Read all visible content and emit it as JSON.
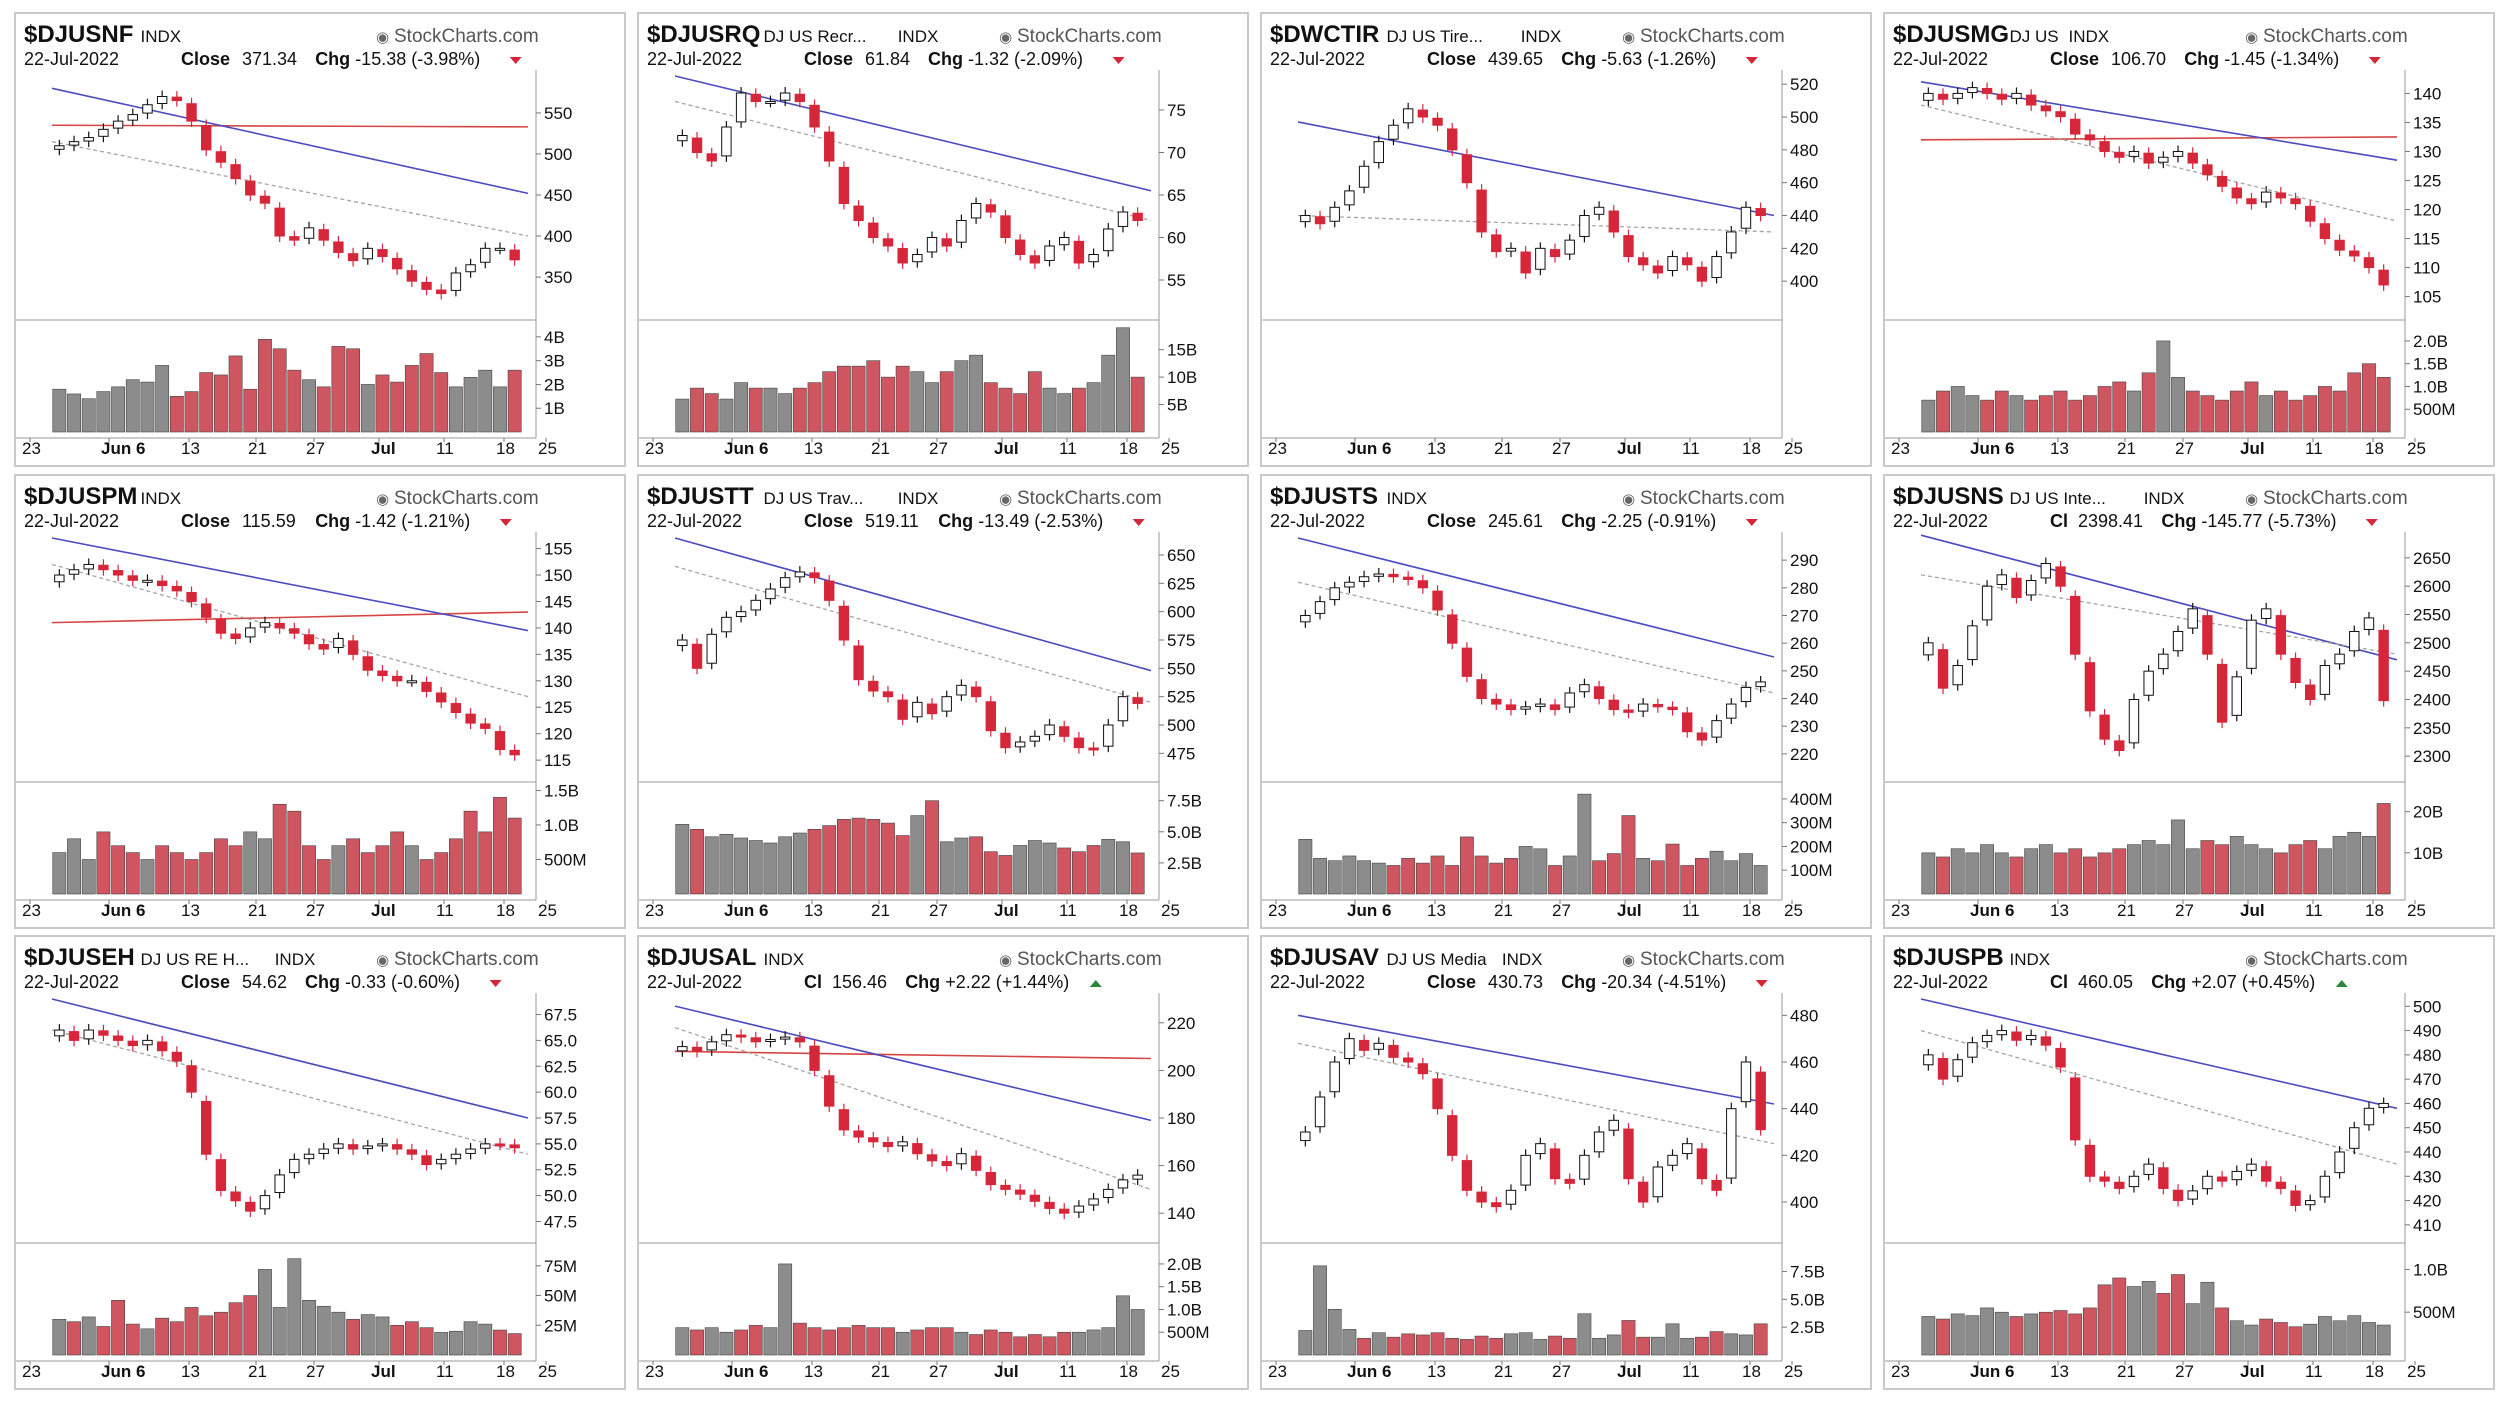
{
  "colors": {
    "up": "#ffffff",
    "down": "#d6263a",
    "vol_up": "#8c8c8c",
    "vol_down": "#cf5660",
    "sma_long": "#d64545",
    "sma_mid": "#4c4cc0",
    "sma_short": "#a5a5a5"
  },
  "site_mark": "StockCharts.com",
  "date": "22-Jul-2022",
  "x_ticks": [
    "23",
    "Jun 6",
    "13",
    "21",
    "27",
    "Jul",
    "11",
    "18",
    "25"
  ],
  "chart_data": [
    {
      "type": "candlestick",
      "symbol": "$DJUSNF",
      "name": "",
      "exchange": "INDX",
      "close_label": "Close",
      "close": "371.34",
      "change": "-15.38 (-3.98%)",
      "direction": "down",
      "ylim": [
        305,
        595
      ],
      "yticks": [
        "550",
        "500",
        "450",
        "400",
        "350"
      ],
      "vol_max": 4.5,
      "vol_ticks": [
        [
          "4B",
          4
        ],
        [
          "3B",
          3
        ],
        [
          "2B",
          2
        ],
        [
          "1B",
          1
        ]
      ],
      "long_ma": [
        535,
        533
      ],
      "mid_ma": [
        580,
        452
      ],
      "short_ma": [
        515,
        400
      ],
      "closes": [
        510,
        515,
        520,
        530,
        540,
        548,
        560,
        570,
        565,
        540,
        505,
        490,
        470,
        450,
        440,
        400,
        395,
        410,
        395,
        380,
        370,
        385,
        375,
        360,
        345,
        335,
        330,
        355,
        365,
        385,
        385,
        371
      ],
      "volumes": [
        1.8,
        1.6,
        1.4,
        1.7,
        1.9,
        2.2,
        2.1,
        2.8,
        1.5,
        1.7,
        2.5,
        2.4,
        3.2,
        1.8,
        3.9,
        3.5,
        2.6,
        2.2,
        1.9,
        3.6,
        3.5,
        2.0,
        2.4,
        2.1,
        2.8,
        3.3,
        2.5,
        1.9,
        2.3,
        2.6,
        1.9,
        2.6
      ]
    },
    {
      "type": "candlestick",
      "symbol": "$DJUSRQ",
      "name": "DJ US Recr...",
      "exchange": "INDX",
      "close_label": "Close",
      "close": "61.84",
      "change": "-1.32 (-2.09%)",
      "direction": "down",
      "ylim": [
        51,
        79
      ],
      "yticks": [
        "75",
        "70",
        "65",
        "60",
        "55"
      ],
      "vol_max": 19.5,
      "vol_ticks": [
        [
          "15B",
          15
        ],
        [
          "10B",
          10
        ],
        [
          "5B",
          5
        ]
      ],
      "long_ma": null,
      "mid_ma": [
        79,
        65.5
      ],
      "short_ma": [
        76,
        62
      ],
      "closes": [
        72,
        70,
        69,
        73,
        77,
        76,
        76,
        77,
        76,
        73,
        69,
        64,
        62,
        60,
        59,
        57,
        58,
        60,
        59,
        62,
        64,
        63,
        60,
        58,
        57,
        59,
        60,
        57,
        58,
        61,
        63,
        62
      ],
      "volumes": [
        6,
        8,
        7,
        6,
        9,
        8,
        8,
        7,
        8,
        9,
        11,
        12,
        12,
        13,
        10,
        12,
        11,
        9,
        11,
        13,
        14,
        9,
        8,
        7,
        11,
        8,
        7,
        8,
        9,
        14,
        19,
        10
      ]
    },
    {
      "type": "candlestick",
      "symbol": "$DWCTIR",
      "name": "DJ US Tire...",
      "exchange": "INDX",
      "close_label": "Close",
      "close": "439.65",
      "change": "-5.63 (-1.26%)",
      "direction": "down",
      "ylim": [
        380,
        525
      ],
      "yticks": [
        "520",
        "500",
        "480",
        "460",
        "440",
        "420",
        "400"
      ],
      "vol_max": null,
      "vol_ticks": [],
      "long_ma": null,
      "mid_ma": [
        497,
        440
      ],
      "short_ma": [
        440,
        430
      ],
      "closes": [
        440,
        435,
        445,
        455,
        470,
        485,
        495,
        505,
        500,
        495,
        480,
        460,
        430,
        418,
        420,
        405,
        420,
        415,
        425,
        440,
        445,
        430,
        415,
        410,
        405,
        415,
        410,
        400,
        415,
        430,
        445,
        440
      ],
      "volumes": []
    },
    {
      "type": "candlestick",
      "symbol": "$DJUSMG",
      "name": "DJ US",
      "exchange": "INDX",
      "close_label": "Close",
      "close": "106.70",
      "change": "-1.45 (-1.34%)",
      "direction": "down",
      "ylim": [
        102,
        143
      ],
      "yticks": [
        "140",
        "135",
        "130",
        "125",
        "120",
        "115",
        "110",
        "105"
      ],
      "vol_max": 2.35,
      "vol_ticks": [
        [
          "2.0B",
          2.0
        ],
        [
          "1.5B",
          1.5
        ],
        [
          "1.0B",
          1.0
        ],
        [
          "500M",
          0.5
        ]
      ],
      "long_ma": [
        132,
        132.5
      ],
      "mid_ma": [
        142,
        128.5
      ],
      "short_ma": [
        138,
        118
      ],
      "closes": [
        140,
        139,
        140,
        141,
        140,
        139,
        140,
        138,
        137,
        136,
        133,
        132,
        130,
        129,
        130,
        128,
        129,
        130,
        128,
        126,
        124,
        122,
        121,
        123,
        122,
        121,
        118,
        115,
        113,
        112,
        110,
        107
      ],
      "volumes": [
        0.7,
        0.9,
        1.0,
        0.8,
        0.7,
        0.9,
        0.8,
        0.7,
        0.8,
        0.9,
        0.7,
        0.8,
        1.0,
        1.1,
        0.9,
        1.3,
        2.0,
        1.2,
        0.9,
        0.8,
        0.7,
        0.9,
        1.1,
        0.8,
        0.9,
        0.7,
        0.8,
        1.0,
        0.9,
        1.3,
        1.5,
        1.2
      ]
    },
    {
      "type": "candlestick",
      "symbol": "$DJUSPM",
      "name": "",
      "exchange": "INDX",
      "close_label": "Close",
      "close": "115.59",
      "change": "-1.42 (-1.21%)",
      "direction": "down",
      "ylim": [
        112,
        157
      ],
      "yticks": [
        "155",
        "150",
        "145",
        "140",
        "135",
        "130",
        "125",
        "120",
        "115"
      ],
      "vol_max": 1.55,
      "vol_ticks": [
        [
          "1.5B",
          1.5
        ],
        [
          "1.0B",
          1.0
        ],
        [
          "500M",
          0.5
        ]
      ],
      "long_ma": [
        141,
        143
      ],
      "mid_ma": [
        157,
        139.5
      ],
      "short_ma": [
        152,
        127
      ],
      "closes": [
        150,
        151,
        152,
        151,
        150,
        149,
        149,
        148,
        147,
        145,
        142,
        139,
        138,
        140,
        141,
        140,
        139,
        137,
        136,
        138,
        135,
        132,
        131,
        130,
        130,
        128,
        126,
        124,
        122,
        121,
        117,
        116
      ],
      "volumes": [
        0.6,
        0.8,
        0.5,
        0.9,
        0.7,
        0.6,
        0.5,
        0.7,
        0.6,
        0.5,
        0.6,
        0.8,
        0.7,
        0.9,
        0.8,
        1.3,
        1.2,
        0.7,
        0.5,
        0.7,
        0.8,
        0.6,
        0.7,
        0.9,
        0.7,
        0.5,
        0.6,
        0.8,
        1.2,
        0.9,
        1.4,
        1.1
      ]
    },
    {
      "type": "candlestick",
      "symbol": "$DJUSTT",
      "name": "DJ US Trav...",
      "exchange": "INDX",
      "close_label": "Close",
      "close": "519.11",
      "change": "-13.49 (-2.53%)",
      "direction": "down",
      "ylim": [
        455,
        665
      ],
      "yticks": [
        "650",
        "625",
        "600",
        "575",
        "550",
        "525",
        "500",
        "475"
      ],
      "vol_max": 8.6,
      "vol_ticks": [
        [
          "7.5B",
          7.5
        ],
        [
          "5.0B",
          5.0
        ],
        [
          "2.5B",
          2.5
        ]
      ],
      "long_ma": null,
      "mid_ma": [
        665,
        548
      ],
      "short_ma": [
        640,
        520
      ],
      "closes": [
        575,
        550,
        580,
        595,
        600,
        610,
        620,
        630,
        635,
        630,
        610,
        575,
        540,
        530,
        525,
        505,
        520,
        510,
        525,
        535,
        525,
        495,
        480,
        485,
        490,
        500,
        490,
        480,
        478,
        500,
        525,
        519
      ],
      "volumes": [
        5.6,
        5.2,
        4.6,
        4.8,
        4.5,
        4.3,
        4.1,
        4.6,
        4.9,
        5.2,
        5.5,
        6.0,
        6.1,
        6.0,
        5.7,
        4.7,
        6.3,
        7.5,
        4.2,
        4.5,
        4.6,
        3.4,
        3.1,
        3.9,
        4.3,
        4.1,
        3.7,
        3.4,
        3.9,
        4.4,
        4.2,
        3.3
      ]
    },
    {
      "type": "candlestick",
      "symbol": "$DJUSTS",
      "name": "",
      "exchange": "INDX",
      "close_label": "Close",
      "close": "245.61",
      "change": "-2.25 (-0.91%)",
      "direction": "down",
      "ylim": [
        212,
        298
      ],
      "yticks": [
        "290",
        "280",
        "270",
        "260",
        "250",
        "240",
        "230",
        "220"
      ],
      "vol_max": 450,
      "vol_ticks": [
        [
          "400M",
          400
        ],
        [
          "300M",
          300
        ],
        [
          "200M",
          200
        ],
        [
          "100M",
          100
        ]
      ],
      "long_ma": null,
      "mid_ma": [
        298,
        255
      ],
      "short_ma": [
        282,
        242
      ],
      "closes": [
        270,
        275,
        280,
        282,
        284,
        285,
        284,
        283,
        280,
        272,
        260,
        248,
        240,
        238,
        236,
        237,
        238,
        236,
        242,
        245,
        240,
        236,
        235,
        238,
        237,
        236,
        228,
        225,
        232,
        238,
        244,
        246
      ],
      "volumes": [
        230,
        150,
        140,
        160,
        140,
        130,
        120,
        150,
        130,
        160,
        120,
        240,
        160,
        130,
        150,
        200,
        190,
        120,
        160,
        420,
        140,
        170,
        330,
        150,
        140,
        210,
        120,
        150,
        180,
        140,
        170,
        120
      ]
    },
    {
      "type": "candlestick",
      "symbol": "$DJUSNS",
      "name": "DJ US Inte...",
      "exchange": "INDX",
      "close_label": "Cl",
      "close": "2398.41",
      "change": "-145.77 (-5.73%)",
      "direction": "down",
      "ylim": [
        2265,
        2685
      ],
      "yticks": [
        "2650",
        "2600",
        "2550",
        "2500",
        "2450",
        "2400",
        "2350",
        "2300"
      ],
      "vol_max": 26,
      "vol_ticks": [
        [
          "20B",
          20
        ],
        [
          "10B",
          10
        ]
      ],
      "long_ma": null,
      "mid_ma": [
        2690,
        2470
      ],
      "short_ma": [
        2620,
        2480
      ],
      "closes": [
        2500,
        2420,
        2460,
        2530,
        2600,
        2620,
        2580,
        2610,
        2640,
        2600,
        2480,
        2380,
        2330,
        2310,
        2400,
        2450,
        2480,
        2520,
        2560,
        2480,
        2360,
        2440,
        2540,
        2560,
        2480,
        2430,
        2400,
        2460,
        2480,
        2520,
        2544,
        2398
      ],
      "volumes": [
        10,
        9,
        11,
        10,
        12,
        10,
        9,
        11,
        12,
        10,
        11,
        9,
        10,
        11,
        12,
        13,
        12,
        18,
        11,
        13,
        12,
        14,
        12,
        11,
        10,
        12,
        13,
        11,
        14,
        15,
        14,
        22
      ]
    },
    {
      "type": "candlestick",
      "symbol": "$DJUSEH",
      "name": "DJ US RE H...",
      "exchange": "INDX",
      "close_label": "Close",
      "close": "54.62",
      "change": "-0.33 (-0.60%)",
      "direction": "down",
      "ylim": [
        46,
        69
      ],
      "yticks": [
        "67.5",
        "65.0",
        "62.5",
        "60.0",
        "57.5",
        "55.0",
        "52.5",
        "50.0",
        "47.5"
      ],
      "vol_max": 90,
      "vol_ticks": [
        [
          "75M",
          75
        ],
        [
          "50M",
          50
        ],
        [
          "25M",
          25
        ]
      ],
      "long_ma": null,
      "mid_ma": [
        69,
        57.5
      ],
      "short_ma": [
        66,
        54
      ],
      "closes": [
        66,
        65,
        66,
        65.5,
        65,
        64.5,
        65,
        64,
        63,
        60,
        54,
        50.5,
        49.5,
        48.5,
        50,
        52,
        53.5,
        54,
        54.5,
        55,
        54.5,
        54.8,
        55,
        54.5,
        54,
        53,
        53.5,
        54,
        54.5,
        55,
        54.95,
        54.62
      ],
      "volumes": [
        30,
        28,
        32,
        24,
        46,
        26,
        22,
        31,
        28,
        40,
        33,
        36,
        44,
        50,
        72,
        40,
        81,
        46,
        41,
        36,
        30,
        34,
        32,
        25,
        28,
        23,
        19,
        20,
        28,
        26,
        21,
        18
      ]
    },
    {
      "type": "candlestick",
      "symbol": "$DJUSAL",
      "name": "",
      "exchange": "INDX",
      "close_label": "Cl",
      "close": "156.46",
      "change": "+2.22 (+1.44%)",
      "direction": "up",
      "ylim": [
        130,
        230
      ],
      "yticks": [
        "220",
        "200",
        "180",
        "160",
        "140"
      ],
      "vol_max": 2.35,
      "vol_ticks": [
        [
          "2.0B",
          2.0
        ],
        [
          "1.5B",
          1.5
        ],
        [
          "1.0B",
          1.0
        ],
        [
          "500M",
          0.5
        ]
      ],
      "long_ma": [
        208,
        205
      ],
      "mid_ma": [
        227,
        179
      ],
      "short_ma": [
        218,
        150
      ],
      "closes": [
        210,
        208,
        212,
        215,
        214,
        212,
        213,
        214,
        212,
        200,
        185,
        175,
        172,
        170,
        168,
        170,
        165,
        162,
        160,
        165,
        158,
        152,
        150,
        148,
        145,
        142,
        140,
        143,
        146,
        150,
        154,
        156
      ],
      "volumes": [
        0.6,
        0.55,
        0.6,
        0.5,
        0.55,
        0.65,
        0.6,
        2.0,
        0.7,
        0.6,
        0.55,
        0.6,
        0.65,
        0.6,
        0.6,
        0.5,
        0.55,
        0.6,
        0.6,
        0.5,
        0.45,
        0.55,
        0.5,
        0.4,
        0.45,
        0.4,
        0.5,
        0.5,
        0.55,
        0.6,
        1.3,
        1.0
      ]
    },
    {
      "type": "candlestick",
      "symbol": "$DJUSAV",
      "name": "DJ US Media",
      "exchange": "INDX",
      "close_label": "Close",
      "close": "430.73",
      "change": "-20.34 (-4.51%)",
      "direction": "down",
      "ylim": [
        385,
        487
      ],
      "yticks": [
        "480",
        "460",
        "440",
        "420",
        "400"
      ],
      "vol_max": 9.6,
      "vol_ticks": [
        [
          "7.5B",
          7.5
        ],
        [
          "5.0B",
          5.0
        ],
        [
          "2.5B",
          2.5
        ]
      ],
      "long_ma": null,
      "mid_ma": [
        480,
        442
      ],
      "short_ma": [
        468,
        425
      ],
      "closes": [
        430,
        445,
        460,
        470,
        465,
        468,
        462,
        460,
        455,
        440,
        420,
        405,
        400,
        398,
        405,
        420,
        425,
        410,
        408,
        420,
        430,
        435,
        410,
        400,
        415,
        420,
        425,
        410,
        405,
        440,
        460,
        431
      ],
      "volumes": [
        2.2,
        8.0,
        4.1,
        2.3,
        1.5,
        2.0,
        1.6,
        1.9,
        1.8,
        2.0,
        1.5,
        1.4,
        1.7,
        1.5,
        1.9,
        2.0,
        1.4,
        1.7,
        1.5,
        3.7,
        1.5,
        1.8,
        3.1,
        1.6,
        1.6,
        2.8,
        1.5,
        1.6,
        2.1,
        1.9,
        1.8,
        2.8
      ]
    },
    {
      "type": "candlestick",
      "symbol": "$DJUSPB",
      "name": "",
      "exchange": "INDX",
      "close_label": "Cl",
      "close": "460.05",
      "change": "+2.07 (+0.45%)",
      "direction": "up",
      "ylim": [
        405,
        503
      ],
      "yticks": [
        "500",
        "490",
        "480",
        "470",
        "460",
        "450",
        "440",
        "430",
        "420",
        "410"
      ],
      "vol_max": 1.25,
      "vol_ticks": [
        [
          "1.0B",
          1.0
        ],
        [
          "500M",
          0.5
        ]
      ],
      "long_ma": null,
      "mid_ma": [
        503,
        458
      ],
      "short_ma": [
        490,
        435
      ],
      "closes": [
        480,
        470,
        478,
        485,
        488,
        490,
        486,
        488,
        484,
        475,
        445,
        430,
        428,
        425,
        430,
        435,
        425,
        420,
        424,
        430,
        428,
        432,
        435,
        428,
        425,
        418,
        420,
        430,
        440,
        450,
        458,
        460
      ],
      "volumes": [
        0.45,
        0.42,
        0.48,
        0.46,
        0.55,
        0.5,
        0.45,
        0.48,
        0.5,
        0.52,
        0.48,
        0.55,
        0.82,
        0.9,
        0.8,
        0.86,
        0.72,
        0.94,
        0.6,
        0.85,
        0.55,
        0.4,
        0.35,
        0.42,
        0.38,
        0.33,
        0.36,
        0.45,
        0.4,
        0.46,
        0.38,
        0.35
      ]
    }
  ]
}
